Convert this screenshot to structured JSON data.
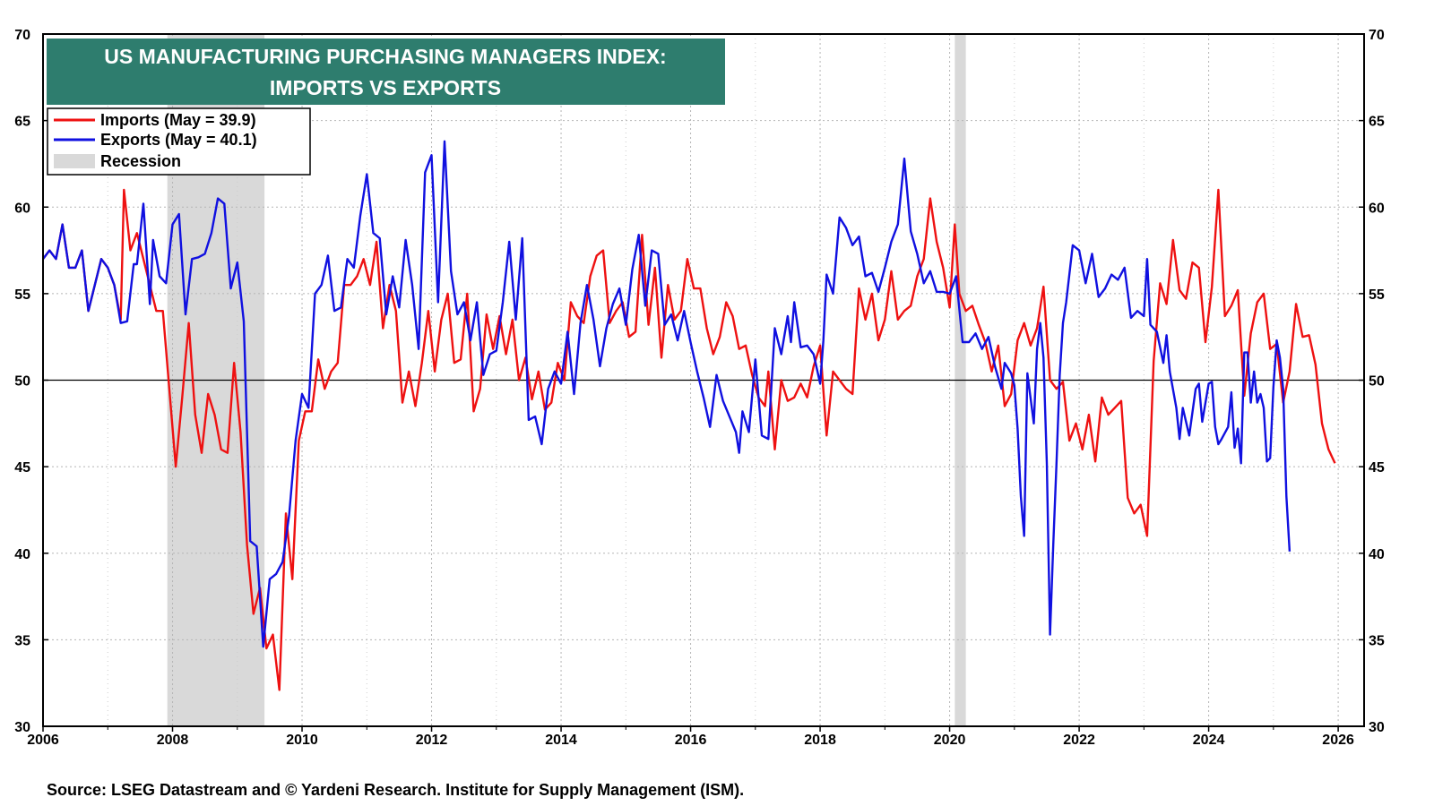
{
  "chart_data": {
    "type": "line",
    "title_lines": [
      "US MANUFACTURING PURCHASING MANAGERS INDEX:",
      "IMPORTS VS EXPORTS"
    ],
    "xlim": [
      2006,
      2026.4
    ],
    "ylim": [
      30,
      70
    ],
    "y_ticks": [
      30,
      35,
      40,
      45,
      50,
      55,
      60,
      65,
      70
    ],
    "x_ticks": [
      2006,
      2008,
      2010,
      2012,
      2014,
      2016,
      2018,
      2020,
      2022,
      2024,
      2026
    ],
    "reference_line": 50,
    "grid": true,
    "legend_position": "top-left",
    "legend": {
      "imports_label": "Imports  (May = 39.9)",
      "exports_label": "Exports (May = 40.1)",
      "recession_label": "Recession"
    },
    "colors": {
      "imports": "#ee1111",
      "exports": "#1010e0",
      "recession": "#d9d9d9",
      "title_bg": "#2e7d6e"
    },
    "recessions": [
      {
        "start": 2007.92,
        "end": 2009.42
      },
      {
        "start": 2020.08,
        "end": 2020.25
      }
    ],
    "series": [
      {
        "name": "Imports",
        "color": "#ee1111",
        "points": [
          [
            2006.0,
            57.0
          ],
          [
            2006.1,
            57.5
          ],
          [
            2006.2,
            57.0
          ],
          [
            2006.3,
            59.0
          ],
          [
            2006.4,
            56.5
          ],
          [
            2006.5,
            56.5
          ],
          [
            2006.6,
            57.5
          ],
          [
            2006.7,
            54.0
          ],
          [
            2006.8,
            55.5
          ],
          [
            2006.9,
            57.0
          ],
          [
            2007.0,
            56.5
          ],
          [
            2007.1,
            55.5
          ],
          [
            2007.2,
            53.5
          ],
          [
            2007.25,
            61.0
          ],
          [
            2007.35,
            57.5
          ],
          [
            2007.45,
            58.5
          ],
          [
            2007.55,
            57.0
          ],
          [
            2007.65,
            55.5
          ],
          [
            2007.75,
            54.0
          ],
          [
            2007.85,
            54.0
          ],
          [
            2007.95,
            49.5
          ],
          [
            2008.05,
            45.0
          ],
          [
            2008.15,
            49.0
          ],
          [
            2008.25,
            53.3
          ],
          [
            2008.35,
            48.0
          ],
          [
            2008.45,
            45.8
          ],
          [
            2008.55,
            49.2
          ],
          [
            2008.65,
            48.0
          ],
          [
            2008.75,
            46.0
          ],
          [
            2008.85,
            45.8
          ],
          [
            2008.95,
            51.0
          ],
          [
            2009.05,
            47.0
          ],
          [
            2009.15,
            40.5
          ],
          [
            2009.25,
            36.5
          ],
          [
            2009.35,
            38.0
          ],
          [
            2009.45,
            34.5
          ],
          [
            2009.55,
            35.3
          ],
          [
            2009.65,
            32.1
          ],
          [
            2009.75,
            42.3
          ],
          [
            2009.85,
            38.5
          ],
          [
            2009.95,
            46.5
          ],
          [
            2010.05,
            48.2
          ],
          [
            2010.15,
            48.2
          ],
          [
            2010.25,
            51.2
          ],
          [
            2010.35,
            49.5
          ],
          [
            2010.45,
            50.5
          ],
          [
            2010.55,
            51.0
          ],
          [
            2010.65,
            55.5
          ],
          [
            2010.75,
            55.5
          ],
          [
            2010.85,
            56.0
          ],
          [
            2010.95,
            57.0
          ],
          [
            2011.05,
            55.5
          ],
          [
            2011.15,
            58.0
          ],
          [
            2011.25,
            53.0
          ],
          [
            2011.35,
            55.5
          ],
          [
            2011.45,
            54.0
          ],
          [
            2011.55,
            48.7
          ],
          [
            2011.65,
            50.5
          ],
          [
            2011.75,
            48.5
          ],
          [
            2011.85,
            51.0
          ],
          [
            2011.95,
            54.0
          ],
          [
            2012.05,
            50.5
          ],
          [
            2012.15,
            53.5
          ],
          [
            2012.25,
            55.0
          ],
          [
            2012.35,
            51.0
          ],
          [
            2012.45,
            51.2
          ],
          [
            2012.55,
            55.0
          ],
          [
            2012.65,
            48.2
          ],
          [
            2012.75,
            49.5
          ],
          [
            2012.85,
            53.8
          ],
          [
            2012.95,
            51.8
          ],
          [
            2013.05,
            53.7
          ],
          [
            2013.15,
            51.5
          ],
          [
            2013.25,
            53.5
          ],
          [
            2013.35,
            50.0
          ],
          [
            2013.45,
            51.3
          ],
          [
            2013.55,
            48.9
          ],
          [
            2013.65,
            50.5
          ],
          [
            2013.75,
            48.3
          ],
          [
            2013.85,
            48.7
          ],
          [
            2013.95,
            51.0
          ],
          [
            2014.05,
            50.0
          ],
          [
            2014.15,
            54.5
          ],
          [
            2014.25,
            53.7
          ],
          [
            2014.35,
            53.3
          ],
          [
            2014.45,
            56.0
          ],
          [
            2014.55,
            57.2
          ],
          [
            2014.65,
            57.5
          ],
          [
            2014.75,
            53.3
          ],
          [
            2014.85,
            54.0
          ],
          [
            2014.95,
            54.5
          ],
          [
            2015.05,
            52.5
          ],
          [
            2015.15,
            52.8
          ],
          [
            2015.25,
            58.4
          ],
          [
            2015.35,
            53.2
          ],
          [
            2015.45,
            56.5
          ],
          [
            2015.55,
            51.3
          ],
          [
            2015.65,
            55.5
          ],
          [
            2015.75,
            53.5
          ],
          [
            2015.85,
            54.0
          ],
          [
            2015.95,
            57.0
          ],
          [
            2016.05,
            55.3
          ],
          [
            2016.15,
            55.3
          ],
          [
            2016.25,
            53.0
          ],
          [
            2016.35,
            51.5
          ],
          [
            2016.45,
            52.5
          ],
          [
            2016.55,
            54.5
          ],
          [
            2016.65,
            53.7
          ],
          [
            2016.75,
            51.8
          ],
          [
            2016.85,
            52.0
          ],
          [
            2016.95,
            50.3
          ],
          [
            2017.05,
            49.0
          ],
          [
            2017.15,
            48.5
          ],
          [
            2017.2,
            50.5
          ],
          [
            2017.3,
            46.0
          ],
          [
            2017.4,
            50.0
          ],
          [
            2017.5,
            48.8
          ],
          [
            2017.6,
            49.0
          ],
          [
            2017.7,
            49.8
          ],
          [
            2017.8,
            49.0
          ],
          [
            2017.9,
            50.8
          ],
          [
            2018.0,
            52.0
          ],
          [
            2018.1,
            46.8
          ],
          [
            2018.2,
            50.5
          ],
          [
            2018.3,
            50.0
          ],
          [
            2018.4,
            49.5
          ],
          [
            2018.5,
            49.2
          ],
          [
            2018.6,
            55.3
          ],
          [
            2018.7,
            53.5
          ],
          [
            2018.8,
            55.0
          ],
          [
            2018.9,
            52.3
          ],
          [
            2019.0,
            53.5
          ],
          [
            2019.1,
            56.3
          ],
          [
            2019.2,
            53.5
          ],
          [
            2019.3,
            54.0
          ],
          [
            2019.4,
            54.3
          ],
          [
            2019.5,
            56.0
          ],
          [
            2019.6,
            57.0
          ],
          [
            2019.7,
            60.5
          ],
          [
            2019.8,
            58.0
          ],
          [
            2019.9,
            56.5
          ],
          [
            2020.0,
            54.2
          ],
          [
            2020.08,
            59.0
          ],
          [
            2020.15,
            55.0
          ],
          [
            2020.25,
            54.0
          ],
          [
            2020.35,
            54.3
          ],
          [
            2020.45,
            53.2
          ],
          [
            2020.55,
            52.2
          ],
          [
            2020.65,
            50.5
          ],
          [
            2020.75,
            52.0
          ],
          [
            2020.85,
            48.5
          ],
          [
            2020.95,
            49.2
          ],
          [
            2021.05,
            52.3
          ],
          [
            2021.15,
            53.3
          ],
          [
            2021.25,
            52.0
          ],
          [
            2021.35,
            53.0
          ],
          [
            2021.45,
            55.4
          ],
          [
            2021.55,
            50.0
          ],
          [
            2021.65,
            49.5
          ],
          [
            2021.75,
            49.9
          ],
          [
            2021.85,
            46.5
          ],
          [
            2021.95,
            47.5
          ],
          [
            2022.05,
            46.0
          ],
          [
            2022.15,
            48.0
          ],
          [
            2022.25,
            45.3
          ],
          [
            2022.35,
            49.0
          ],
          [
            2022.45,
            48.0
          ],
          [
            2022.55,
            48.4
          ],
          [
            2022.65,
            48.8
          ],
          [
            2022.75,
            43.2
          ],
          [
            2022.85,
            42.3
          ],
          [
            2022.95,
            42.8
          ],
          [
            2023.05,
            41.0
          ],
          [
            2023.15,
            51.1
          ],
          [
            2023.25,
            55.6
          ],
          [
            2023.35,
            54.4
          ],
          [
            2023.45,
            58.1
          ],
          [
            2023.55,
            55.2
          ],
          [
            2023.65,
            54.7
          ],
          [
            2023.75,
            56.8
          ],
          [
            2023.85,
            56.5
          ],
          [
            2023.95,
            52.2
          ],
          [
            2024.05,
            55.4
          ],
          [
            2024.15,
            61.0
          ],
          [
            2024.25,
            53.7
          ],
          [
            2024.35,
            54.3
          ],
          [
            2024.45,
            55.2
          ],
          [
            2024.55,
            49.1
          ],
          [
            2024.65,
            52.7
          ],
          [
            2024.75,
            54.5
          ],
          [
            2024.85,
            55.0
          ],
          [
            2024.95,
            51.8
          ],
          [
            2025.05,
            52.1
          ],
          [
            2025.15,
            48.7
          ],
          [
            2025.25,
            50.5
          ],
          [
            2025.35,
            54.4
          ],
          [
            2025.45,
            52.5
          ],
          [
            2025.55,
            52.6
          ],
          [
            2025.65,
            50.9
          ],
          [
            2025.75,
            47.5
          ],
          [
            2025.85,
            46.0
          ],
          [
            2025.95,
            45.2
          ]
        ]
      },
      {
        "name": "Exports",
        "color": "#1010e0",
        "points": [
          [
            2006.0,
            57.0
          ]
        ]
      }
    ]
  },
  "source_text": "Source: LSEG Datastream and © Yardeni Research. Institute for Supply Management (ISM)."
}
